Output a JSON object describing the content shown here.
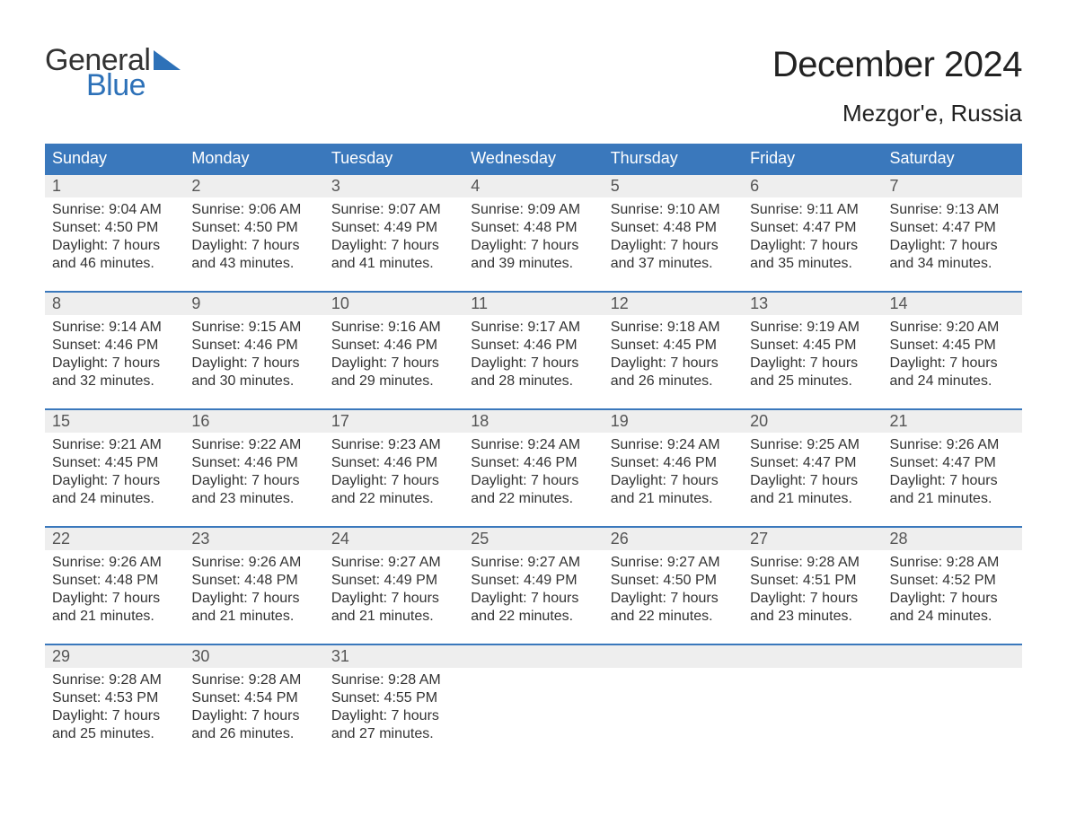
{
  "brand": {
    "part1": "General",
    "part2": "Blue",
    "color_text": "#333333",
    "color_blue": "#2d71b8"
  },
  "title": "December 2024",
  "location": "Mezgor'e, Russia",
  "colors": {
    "header_bg": "#3a78bc",
    "header_text": "#ffffff",
    "week_border": "#3a78bc",
    "daynum_bg": "#eeeeee",
    "page_bg": "#ffffff",
    "body_text": "#333333"
  },
  "days_of_week": [
    "Sunday",
    "Monday",
    "Tuesday",
    "Wednesday",
    "Thursday",
    "Friday",
    "Saturday"
  ],
  "weeks": [
    [
      {
        "n": "1",
        "sunrise": "Sunrise: 9:04 AM",
        "sunset": "Sunset: 4:50 PM",
        "day1": "Daylight: 7 hours",
        "day2": "and 46 minutes."
      },
      {
        "n": "2",
        "sunrise": "Sunrise: 9:06 AM",
        "sunset": "Sunset: 4:50 PM",
        "day1": "Daylight: 7 hours",
        "day2": "and 43 minutes."
      },
      {
        "n": "3",
        "sunrise": "Sunrise: 9:07 AM",
        "sunset": "Sunset: 4:49 PM",
        "day1": "Daylight: 7 hours",
        "day2": "and 41 minutes."
      },
      {
        "n": "4",
        "sunrise": "Sunrise: 9:09 AM",
        "sunset": "Sunset: 4:48 PM",
        "day1": "Daylight: 7 hours",
        "day2": "and 39 minutes."
      },
      {
        "n": "5",
        "sunrise": "Sunrise: 9:10 AM",
        "sunset": "Sunset: 4:48 PM",
        "day1": "Daylight: 7 hours",
        "day2": "and 37 minutes."
      },
      {
        "n": "6",
        "sunrise": "Sunrise: 9:11 AM",
        "sunset": "Sunset: 4:47 PM",
        "day1": "Daylight: 7 hours",
        "day2": "and 35 minutes."
      },
      {
        "n": "7",
        "sunrise": "Sunrise: 9:13 AM",
        "sunset": "Sunset: 4:47 PM",
        "day1": "Daylight: 7 hours",
        "day2": "and 34 minutes."
      }
    ],
    [
      {
        "n": "8",
        "sunrise": "Sunrise: 9:14 AM",
        "sunset": "Sunset: 4:46 PM",
        "day1": "Daylight: 7 hours",
        "day2": "and 32 minutes."
      },
      {
        "n": "9",
        "sunrise": "Sunrise: 9:15 AM",
        "sunset": "Sunset: 4:46 PM",
        "day1": "Daylight: 7 hours",
        "day2": "and 30 minutes."
      },
      {
        "n": "10",
        "sunrise": "Sunrise: 9:16 AM",
        "sunset": "Sunset: 4:46 PM",
        "day1": "Daylight: 7 hours",
        "day2": "and 29 minutes."
      },
      {
        "n": "11",
        "sunrise": "Sunrise: 9:17 AM",
        "sunset": "Sunset: 4:46 PM",
        "day1": "Daylight: 7 hours",
        "day2": "and 28 minutes."
      },
      {
        "n": "12",
        "sunrise": "Sunrise: 9:18 AM",
        "sunset": "Sunset: 4:45 PM",
        "day1": "Daylight: 7 hours",
        "day2": "and 26 minutes."
      },
      {
        "n": "13",
        "sunrise": "Sunrise: 9:19 AM",
        "sunset": "Sunset: 4:45 PM",
        "day1": "Daylight: 7 hours",
        "day2": "and 25 minutes."
      },
      {
        "n": "14",
        "sunrise": "Sunrise: 9:20 AM",
        "sunset": "Sunset: 4:45 PM",
        "day1": "Daylight: 7 hours",
        "day2": "and 24 minutes."
      }
    ],
    [
      {
        "n": "15",
        "sunrise": "Sunrise: 9:21 AM",
        "sunset": "Sunset: 4:45 PM",
        "day1": "Daylight: 7 hours",
        "day2": "and 24 minutes."
      },
      {
        "n": "16",
        "sunrise": "Sunrise: 9:22 AM",
        "sunset": "Sunset: 4:46 PM",
        "day1": "Daylight: 7 hours",
        "day2": "and 23 minutes."
      },
      {
        "n": "17",
        "sunrise": "Sunrise: 9:23 AM",
        "sunset": "Sunset: 4:46 PM",
        "day1": "Daylight: 7 hours",
        "day2": "and 22 minutes."
      },
      {
        "n": "18",
        "sunrise": "Sunrise: 9:24 AM",
        "sunset": "Sunset: 4:46 PM",
        "day1": "Daylight: 7 hours",
        "day2": "and 22 minutes."
      },
      {
        "n": "19",
        "sunrise": "Sunrise: 9:24 AM",
        "sunset": "Sunset: 4:46 PM",
        "day1": "Daylight: 7 hours",
        "day2": "and 21 minutes."
      },
      {
        "n": "20",
        "sunrise": "Sunrise: 9:25 AM",
        "sunset": "Sunset: 4:47 PM",
        "day1": "Daylight: 7 hours",
        "day2": "and 21 minutes."
      },
      {
        "n": "21",
        "sunrise": "Sunrise: 9:26 AM",
        "sunset": "Sunset: 4:47 PM",
        "day1": "Daylight: 7 hours",
        "day2": "and 21 minutes."
      }
    ],
    [
      {
        "n": "22",
        "sunrise": "Sunrise: 9:26 AM",
        "sunset": "Sunset: 4:48 PM",
        "day1": "Daylight: 7 hours",
        "day2": "and 21 minutes."
      },
      {
        "n": "23",
        "sunrise": "Sunrise: 9:26 AM",
        "sunset": "Sunset: 4:48 PM",
        "day1": "Daylight: 7 hours",
        "day2": "and 21 minutes."
      },
      {
        "n": "24",
        "sunrise": "Sunrise: 9:27 AM",
        "sunset": "Sunset: 4:49 PM",
        "day1": "Daylight: 7 hours",
        "day2": "and 21 minutes."
      },
      {
        "n": "25",
        "sunrise": "Sunrise: 9:27 AM",
        "sunset": "Sunset: 4:49 PM",
        "day1": "Daylight: 7 hours",
        "day2": "and 22 minutes."
      },
      {
        "n": "26",
        "sunrise": "Sunrise: 9:27 AM",
        "sunset": "Sunset: 4:50 PM",
        "day1": "Daylight: 7 hours",
        "day2": "and 22 minutes."
      },
      {
        "n": "27",
        "sunrise": "Sunrise: 9:28 AM",
        "sunset": "Sunset: 4:51 PM",
        "day1": "Daylight: 7 hours",
        "day2": "and 23 minutes."
      },
      {
        "n": "28",
        "sunrise": "Sunrise: 9:28 AM",
        "sunset": "Sunset: 4:52 PM",
        "day1": "Daylight: 7 hours",
        "day2": "and 24 minutes."
      }
    ],
    [
      {
        "n": "29",
        "sunrise": "Sunrise: 9:28 AM",
        "sunset": "Sunset: 4:53 PM",
        "day1": "Daylight: 7 hours",
        "day2": "and 25 minutes."
      },
      {
        "n": "30",
        "sunrise": "Sunrise: 9:28 AM",
        "sunset": "Sunset: 4:54 PM",
        "day1": "Daylight: 7 hours",
        "day2": "and 26 minutes."
      },
      {
        "n": "31",
        "sunrise": "Sunrise: 9:28 AM",
        "sunset": "Sunset: 4:55 PM",
        "day1": "Daylight: 7 hours",
        "day2": "and 27 minutes."
      },
      {
        "n": "",
        "sunrise": "",
        "sunset": "",
        "day1": "",
        "day2": ""
      },
      {
        "n": "",
        "sunrise": "",
        "sunset": "",
        "day1": "",
        "day2": ""
      },
      {
        "n": "",
        "sunrise": "",
        "sunset": "",
        "day1": "",
        "day2": ""
      },
      {
        "n": "",
        "sunrise": "",
        "sunset": "",
        "day1": "",
        "day2": ""
      }
    ]
  ]
}
